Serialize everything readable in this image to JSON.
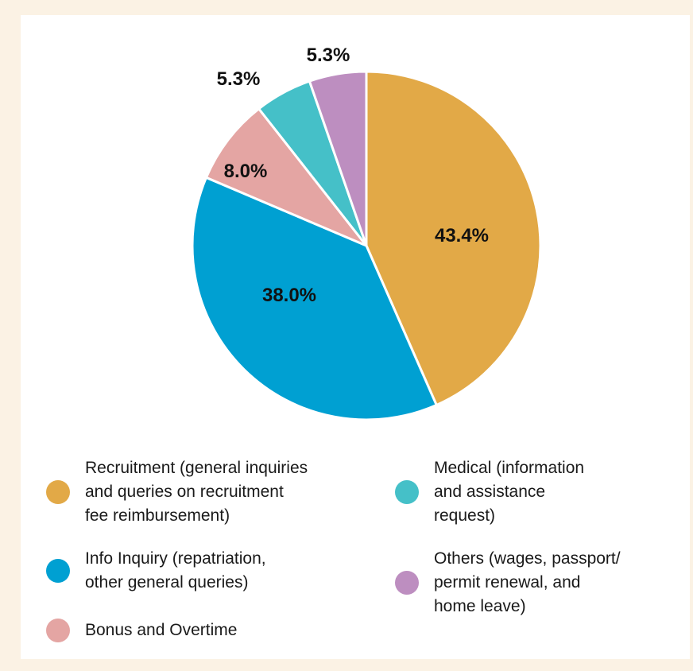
{
  "chart_data": {
    "type": "pie",
    "slices": [
      {
        "label": "Recruitment (general inquiries\nand queries on recruitment\nfee reimbursement)",
        "value": 43.4,
        "display": "43.4%",
        "color": "#e2a947"
      },
      {
        "label": "Info Inquiry (repatriation,\nother general queries)",
        "value": 38.0,
        "display": "38.0%",
        "color": "#00a0d2"
      },
      {
        "label": "Bonus and Overtime",
        "value": 8.0,
        "display": "8.0%",
        "color": "#e4a5a3"
      },
      {
        "label": "Medical (information\nand assistance\nrequest)",
        "value": 5.3,
        "display": "5.3%",
        "color": "#45c0c8"
      },
      {
        "label": "Others (wages, passport/\npermit renewal, and\nhome leave)",
        "value": 5.3,
        "display": "5.3%",
        "color": "#bd8ec0"
      }
    ]
  },
  "background_color": "#fbf2e4"
}
